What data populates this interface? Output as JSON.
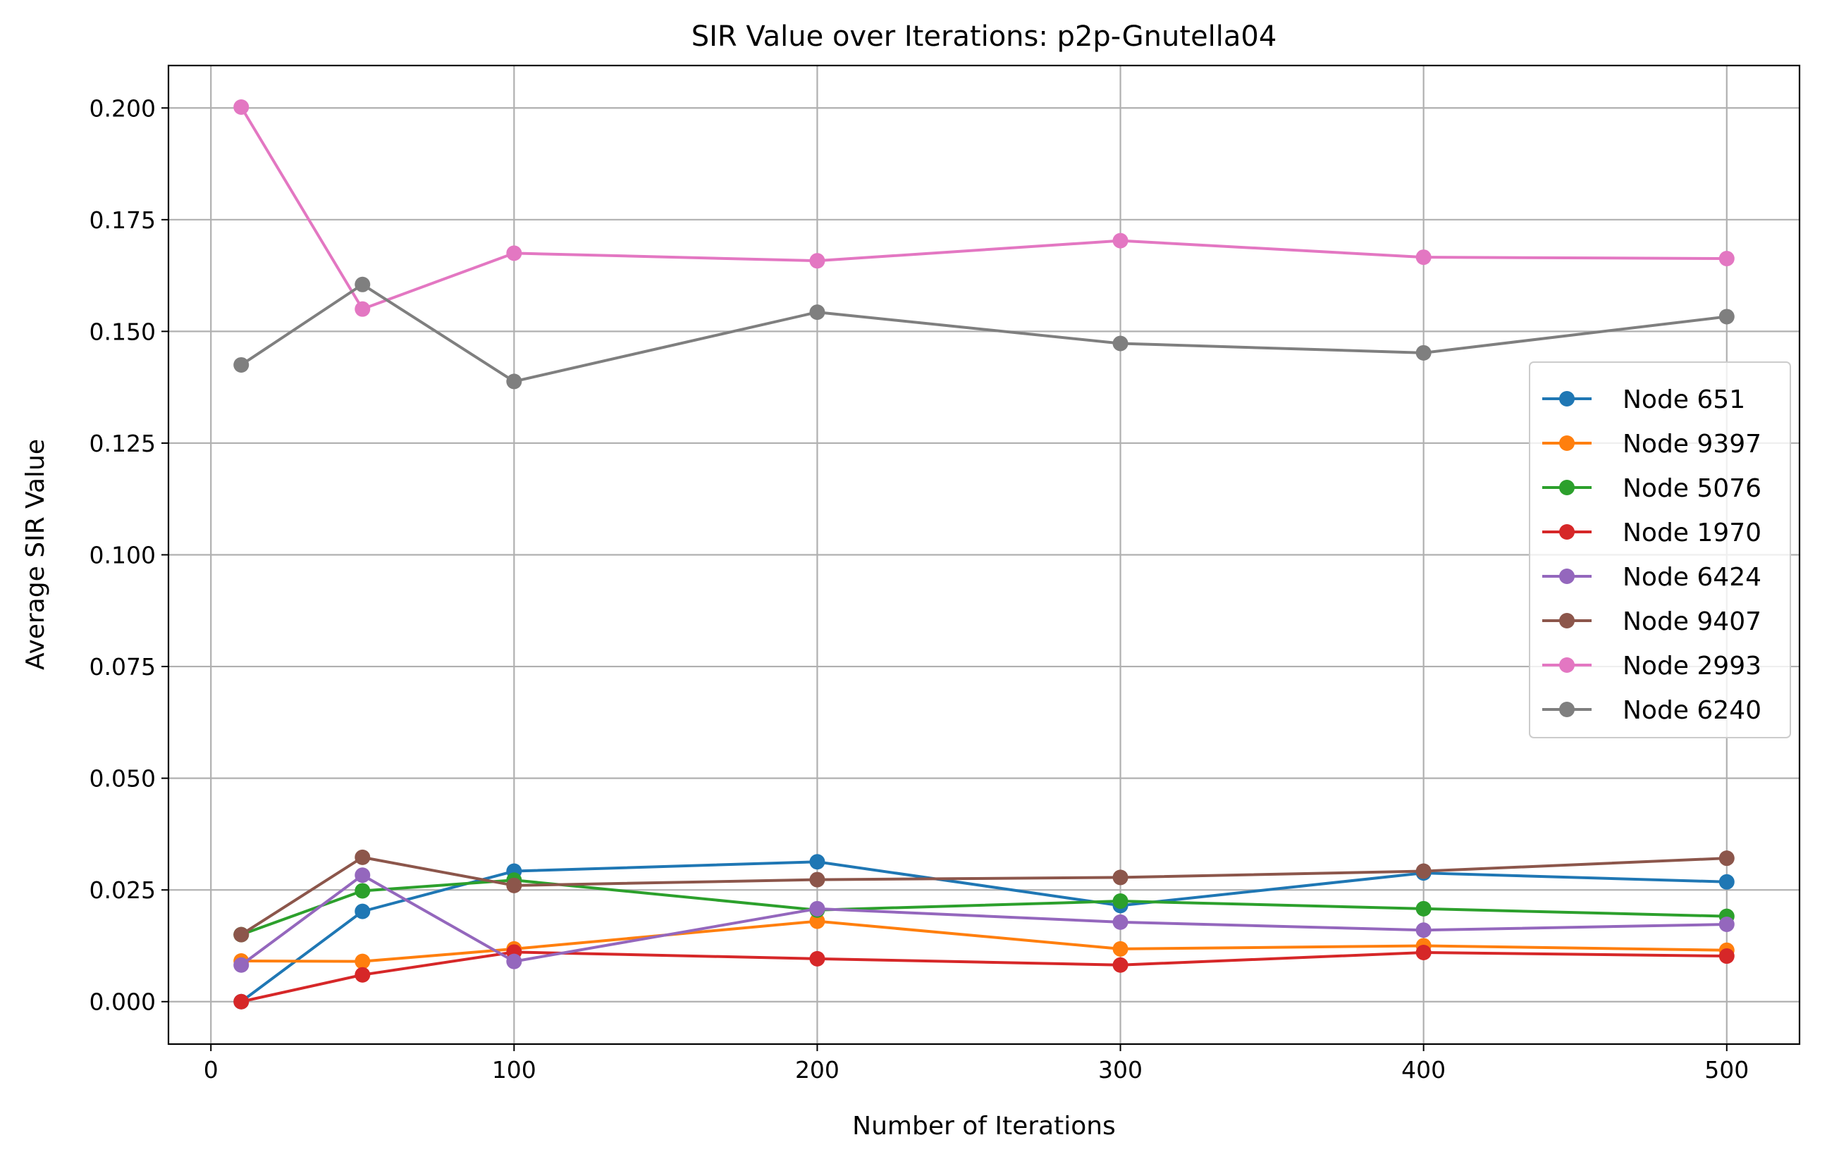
{
  "chart_data": {
    "type": "line",
    "title": "SIR Value over Iterations: p2p-Gnutella04",
    "xlabel": "Number of Iterations",
    "ylabel": "Average SIR Value",
    "x": [
      10,
      50,
      100,
      200,
      300,
      400,
      500
    ],
    "xlim": [
      -14,
      524
    ],
    "ylim": [
      -0.0095,
      0.2095
    ],
    "xticks": [
      0,
      100,
      200,
      300,
      400,
      500
    ],
    "xtick_labels": [
      "0",
      "100",
      "200",
      "300",
      "400",
      "500"
    ],
    "yticks": [
      0.0,
      0.025,
      0.05,
      0.075,
      0.1,
      0.125,
      0.15,
      0.175,
      0.2
    ],
    "ytick_labels": [
      "0.000",
      "0.025",
      "0.050",
      "0.075",
      "0.100",
      "0.125",
      "0.150",
      "0.175",
      "0.200"
    ],
    "grid": true,
    "legend_position": "center-right",
    "series": [
      {
        "name": "Node 651",
        "color": "#1f77b4",
        "values": [
          0.0,
          0.0202,
          0.0292,
          0.0313,
          0.0215,
          0.0288,
          0.0268
        ]
      },
      {
        "name": "Node 9397",
        "color": "#ff7f0e",
        "values": [
          0.0091,
          0.009,
          0.0118,
          0.018,
          0.0118,
          0.0125,
          0.0115
        ]
      },
      {
        "name": "Node 5076",
        "color": "#2ca02c",
        "values": [
          0.015,
          0.0248,
          0.0272,
          0.0205,
          0.0225,
          0.0208,
          0.0191
        ]
      },
      {
        "name": "Node 1970",
        "color": "#d62728",
        "values": [
          0.0,
          0.006,
          0.0111,
          0.0096,
          0.0082,
          0.011,
          0.0102
        ]
      },
      {
        "name": "Node 6424",
        "color": "#9467bd",
        "values": [
          0.0082,
          0.0283,
          0.009,
          0.0208,
          0.0178,
          0.016,
          0.0173
        ]
      },
      {
        "name": "Node 9407",
        "color": "#8c564b",
        "values": [
          0.015,
          0.0323,
          0.026,
          0.0273,
          0.0278,
          0.0292,
          0.0321
        ]
      },
      {
        "name": "Node 2993",
        "color": "#e377c2",
        "values": [
          0.2002,
          0.155,
          0.1675,
          0.1658,
          0.1703,
          0.1666,
          0.1663
        ]
      },
      {
        "name": "Node 6240",
        "color": "#7f7f7f",
        "values": [
          0.1425,
          0.1605,
          0.1388,
          0.1543,
          0.1473,
          0.1452,
          0.1533
        ]
      }
    ]
  }
}
